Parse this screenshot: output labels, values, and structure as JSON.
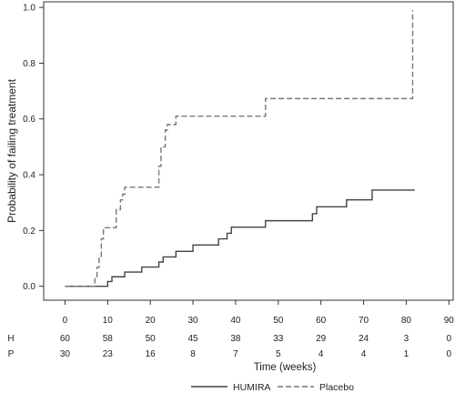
{
  "chart_data": {
    "type": "line",
    "step": true,
    "ylabel": "Probability of failing treatment",
    "xlabel": "Time (weeks)",
    "xlim": [
      -5,
      91
    ],
    "ylim": [
      -0.05,
      1.02
    ],
    "x_ticks": [
      "0",
      "10",
      "20",
      "30",
      "40",
      "50",
      "60",
      "70",
      "80",
      "90"
    ],
    "y_ticks": [
      "0.0",
      "0.2",
      "0.4",
      "0.6",
      "0.8",
      "1.0"
    ],
    "grid": false,
    "legend_position": "bottom",
    "series": [
      {
        "name": "HUMIRA",
        "line_style": "solid",
        "color": "#444444",
        "x": [
          0,
          10,
          11,
          14,
          18,
          22,
          23,
          26,
          30,
          36,
          38,
          39,
          47,
          58,
          59,
          66,
          72,
          82
        ],
        "y": [
          0.0,
          0.017,
          0.034,
          0.051,
          0.069,
          0.087,
          0.105,
          0.125,
          0.148,
          0.17,
          0.19,
          0.212,
          0.235,
          0.26,
          0.285,
          0.31,
          0.345,
          0.345
        ]
      },
      {
        "name": "Placebo",
        "line_style": "dashed",
        "color": "#777777",
        "x": [
          0,
          7,
          7.5,
          8,
          8.5,
          9,
          12,
          13,
          13.5,
          14,
          22,
          22.5,
          23.5,
          24,
          26,
          26.5,
          47,
          81,
          81.5
        ],
        "y": [
          0.0,
          0.034,
          0.068,
          0.1,
          0.17,
          0.21,
          0.275,
          0.31,
          0.33,
          0.355,
          0.43,
          0.5,
          0.56,
          0.58,
          0.61,
          0.61,
          0.673,
          0.673,
          0.99
        ]
      }
    ],
    "risk_table": {
      "rows": [
        {
          "label": "H",
          "values": [
            "60",
            "58",
            "50",
            "45",
            "38",
            "33",
            "29",
            "24",
            "3",
            "0"
          ]
        },
        {
          "label": "P",
          "values": [
            "30",
            "23",
            "16",
            "8",
            "7",
            "5",
            "4",
            "4",
            "1",
            "0"
          ]
        }
      ]
    }
  }
}
